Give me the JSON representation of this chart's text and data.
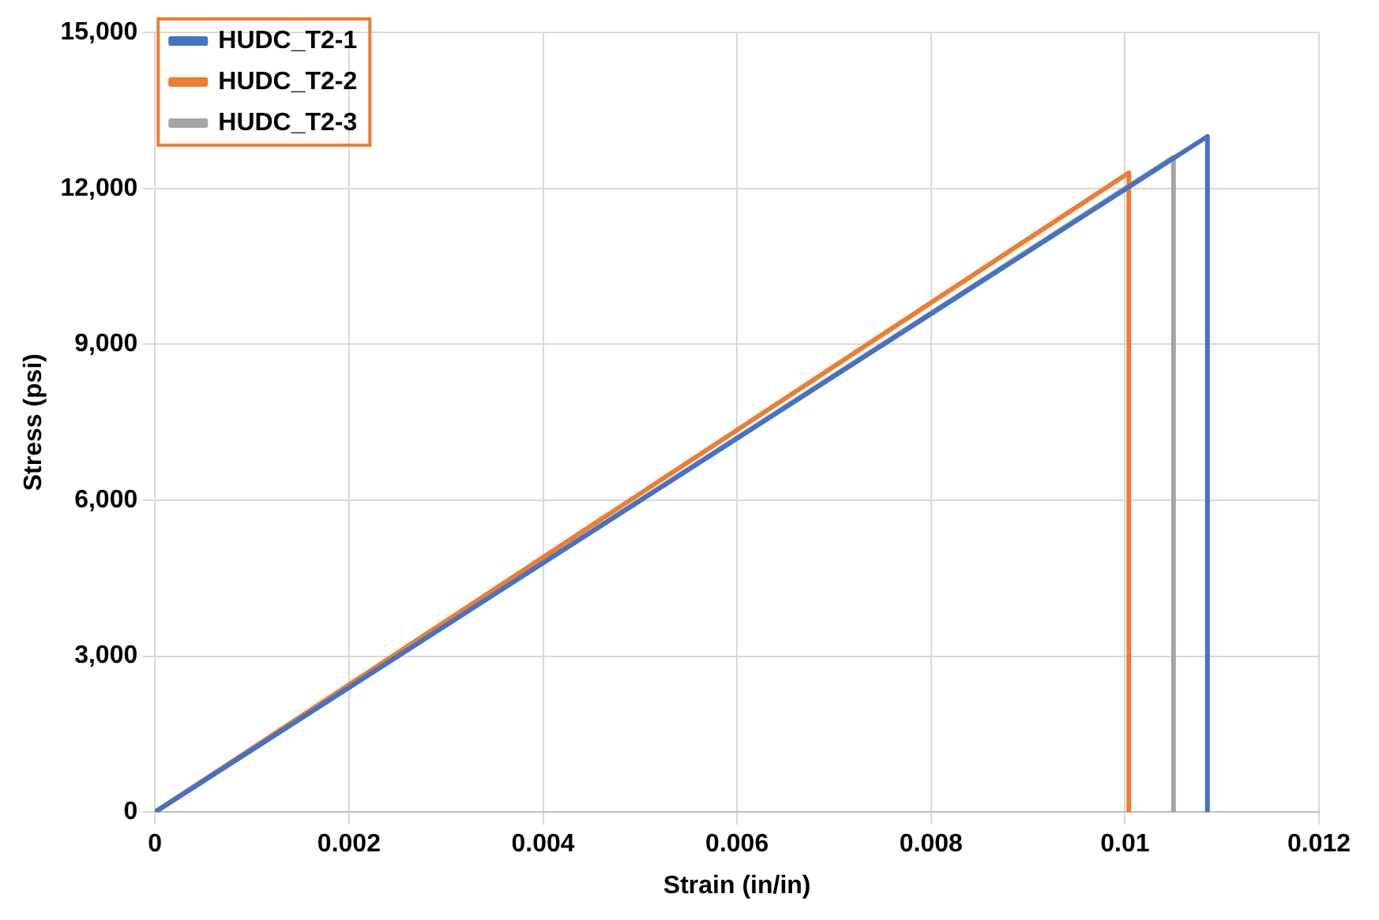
{
  "chart_data": {
    "type": "line",
    "xlabel": "Strain (in/in)",
    "ylabel": "Stress (psi)",
    "series": [
      {
        "name": "HUDC_T2-1",
        "color": "#4472c4",
        "x": [
          0,
          0.01085,
          0.01085
        ],
        "values": [
          0,
          13000,
          0
        ]
      },
      {
        "name": "HUDC_T2-2",
        "color": "#ed7d31",
        "x": [
          0,
          0.01004,
          0.01004
        ],
        "values": [
          0,
          12300,
          0
        ]
      },
      {
        "name": "HUDC_T2-3",
        "color": "#a5a5a5",
        "x": [
          0,
          0.0105,
          0.0105
        ],
        "values": [
          0,
          12600,
          0
        ]
      }
    ],
    "xlim": [
      0,
      0.012
    ],
    "xticks": [
      0,
      0.002,
      0.004,
      0.006,
      0.008,
      0.01,
      0.012
    ],
    "ylim": [
      0,
      15000
    ],
    "yticks": [
      {
        "value": 0,
        "label": "0"
      },
      {
        "value": 3000,
        "label": "3,000"
      },
      {
        "value": 6000,
        "label": "6,000"
      },
      {
        "value": 9000,
        "label": "9,000"
      },
      {
        "value": 12000,
        "label": "12,000"
      },
      {
        "value": 15000,
        "label": "15,000"
      }
    ],
    "grid": true,
    "legend": "top left",
    "marker": "none",
    "line_style": "solid"
  }
}
